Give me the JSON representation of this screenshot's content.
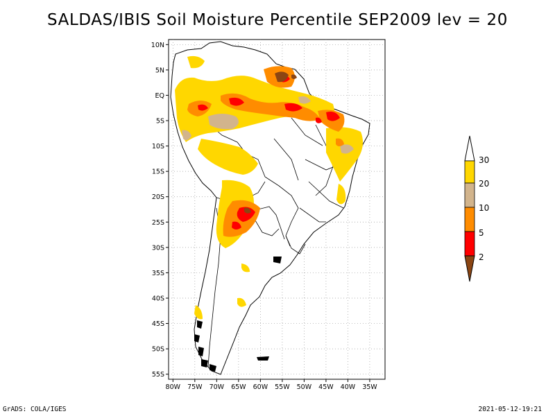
{
  "title": "SALDAS/IBIS Soil Moisture Percentile SEP2009 lev = 20",
  "footer": {
    "left": "GrADS: COLA/IGES",
    "right": "2021-05-12-19:21"
  },
  "map": {
    "lon_range": [
      -81,
      -31.5
    ],
    "lat_range": [
      -56,
      11
    ],
    "x_ticks": [
      {
        "lon": -80,
        "label": "80W"
      },
      {
        "lon": -75,
        "label": "75W"
      },
      {
        "lon": -70,
        "label": "70W"
      },
      {
        "lon": -65,
        "label": "65W"
      },
      {
        "lon": -60,
        "label": "60W"
      },
      {
        "lon": -55,
        "label": "55W"
      },
      {
        "lon": -50,
        "label": "50W"
      },
      {
        "lon": -45,
        "label": "45W"
      },
      {
        "lon": -40,
        "label": "40W"
      },
      {
        "lon": -35,
        "label": "35W"
      }
    ],
    "y_ticks": [
      {
        "lat": 10,
        "label": "10N"
      },
      {
        "lat": 5,
        "label": "5N"
      },
      {
        "lat": 0,
        "label": "EQ"
      },
      {
        "lat": -5,
        "label": "5S"
      },
      {
        "lat": -10,
        "label": "10S"
      },
      {
        "lat": -15,
        "label": "15S"
      },
      {
        "lat": -20,
        "label": "20S"
      },
      {
        "lat": -25,
        "label": "25S"
      },
      {
        "lat": -30,
        "label": "30S"
      },
      {
        "lat": -35,
        "label": "35S"
      },
      {
        "lat": -40,
        "label": "40S"
      },
      {
        "lat": -45,
        "label": "45S"
      },
      {
        "lat": -50,
        "label": "50S"
      },
      {
        "lat": -55,
        "label": "55S"
      }
    ],
    "grid": "dotted"
  },
  "colorbar": {
    "levels": [
      "2",
      "5",
      "10",
      "20",
      "30"
    ],
    "colors": {
      "below_2": "#8b4513",
      "2_5": "#ff0000",
      "5_10": "#ff8c00",
      "10_20": "#d2b48c",
      "20_30": "#ffd700",
      "above_30": "#ffffff"
    }
  }
}
